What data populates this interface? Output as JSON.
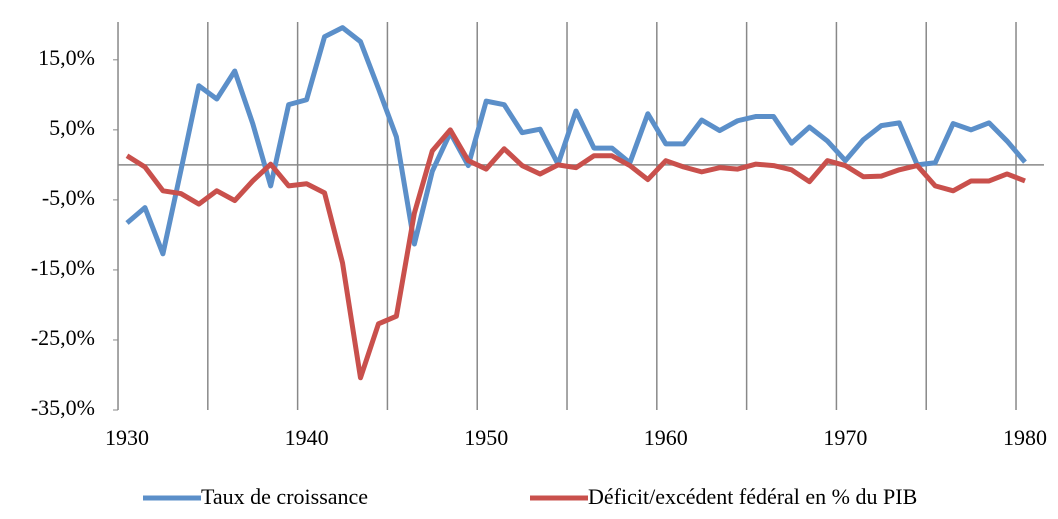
{
  "chart_data": {
    "type": "line",
    "x": [
      1930,
      1931,
      1932,
      1933,
      1934,
      1935,
      1936,
      1937,
      1938,
      1939,
      1940,
      1941,
      1942,
      1943,
      1944,
      1945,
      1946,
      1947,
      1948,
      1949,
      1950,
      1951,
      1952,
      1953,
      1954,
      1955,
      1956,
      1957,
      1958,
      1959,
      1960,
      1961,
      1962,
      1963,
      1964,
      1965,
      1966,
      1967,
      1968,
      1969,
      1970,
      1971,
      1972,
      1973,
      1974,
      1975,
      1976,
      1977,
      1978,
      1979,
      1980
    ],
    "series": [
      {
        "name": "Taux de croissance",
        "color": "#5b8fc9",
        "values": [
          -8.3,
          -6.1,
          -12.7,
          -0.8,
          11.3,
          9.4,
          13.4,
          5.9,
          -3.0,
          8.6,
          9.3,
          18.3,
          19.6,
          17.6,
          10.9,
          4.0,
          -11.3,
          -0.9,
          4.6,
          -0.1,
          9.1,
          8.6,
          4.6,
          5.1,
          0.1,
          7.7,
          2.4,
          2.4,
          0.3,
          7.3,
          3.0,
          3.0,
          6.4,
          4.9,
          6.3,
          6.9,
          6.9,
          3.1,
          5.4,
          3.4,
          0.6,
          3.6,
          5.6,
          6.0,
          0.0,
          0.3,
          5.9,
          5.0,
          6.0,
          3.4,
          0.4
        ]
      },
      {
        "name": "Déficit/excédent fédéral en % du PIB",
        "color": "#c9504c",
        "values": [
          1.3,
          -0.3,
          -3.7,
          -4.1,
          -5.6,
          -3.7,
          -5.1,
          -2.3,
          0.1,
          -3.0,
          -2.7,
          -4.0,
          -14.0,
          -30.4,
          -22.7,
          -21.6,
          -6.9,
          2.0,
          5.0,
          0.6,
          -0.6,
          2.3,
          -0.1,
          -1.3,
          0.0,
          -0.4,
          1.3,
          1.3,
          -0.1,
          -2.1,
          0.6,
          -0.3,
          -1.0,
          -0.4,
          -0.6,
          0.1,
          -0.1,
          -0.7,
          -2.4,
          0.6,
          -0.1,
          -1.7,
          -1.6,
          -0.7,
          -0.1,
          -3.0,
          -3.7,
          -2.3,
          -2.3,
          -1.3,
          -2.3
        ]
      }
    ],
    "xlim": [
      1930,
      1980
    ],
    "xticks": [
      1930,
      1940,
      1950,
      1960,
      1970,
      1980
    ],
    "ylim": [
      -35,
      20.4
    ],
    "yticks": [
      {
        "value": -35,
        "label": "-35,0%"
      },
      {
        "value": -25,
        "label": "-25,0%"
      },
      {
        "value": -15,
        "label": "-15,0%"
      },
      {
        "value": -5,
        "label": "-5,0%"
      },
      {
        "value": 5,
        "label": "5,0%"
      },
      {
        "value": 15,
        "label": "15,0%"
      }
    ],
    "xgrid_step": 5,
    "legend": "bottom"
  }
}
